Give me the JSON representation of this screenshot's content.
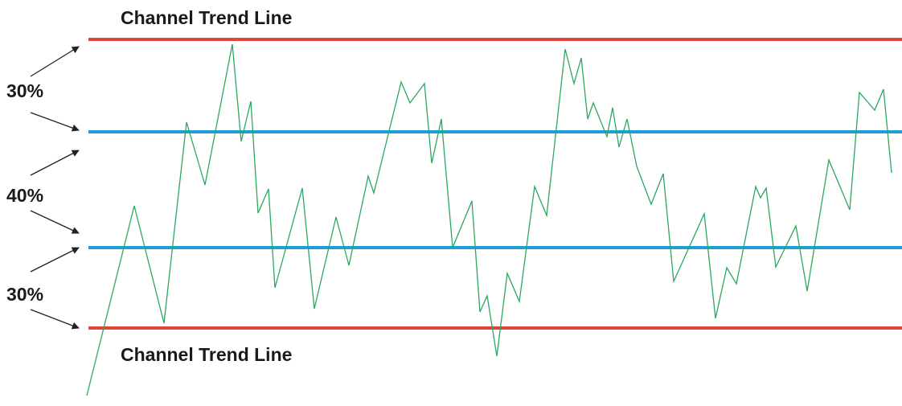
{
  "labels": {
    "top_line": "Channel Trend Line",
    "bottom_line": "Channel Trend Line",
    "zones": [
      "30%",
      "40%",
      "30%"
    ]
  }
}
